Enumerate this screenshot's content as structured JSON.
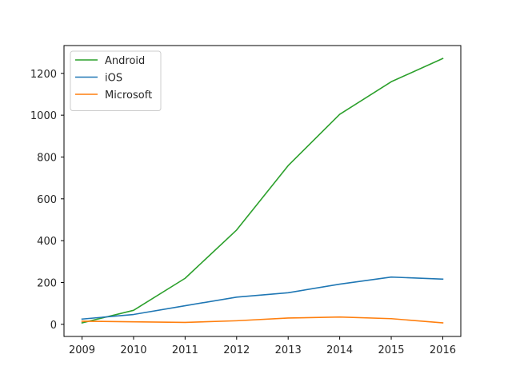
{
  "chart_data": {
    "type": "line",
    "title": "",
    "xlabel": "",
    "ylabel": "",
    "x": [
      2009,
      2010,
      2011,
      2012,
      2013,
      2014,
      2015,
      2016
    ],
    "xlim": [
      2008.65,
      2016.35
    ],
    "ylim": [
      -58,
      1333
    ],
    "yticks": [
      0,
      200,
      400,
      600,
      800,
      1000,
      1200
    ],
    "grid": false,
    "legend_position": "upper-left",
    "series": [
      {
        "name": "Android",
        "color": "#2ca02c",
        "values": [
          7,
          67,
          220,
          451,
          759,
          1004,
          1160,
          1271
        ]
      },
      {
        "name": "iOS",
        "color": "#1f77b4",
        "values": [
          25,
          47,
          89,
          130,
          151,
          192,
          226,
          216
        ]
      },
      {
        "name": "Microsoft",
        "color": "#ff7f0e",
        "values": [
          15,
          12,
          9,
          17,
          30,
          35,
          27,
          7
        ]
      }
    ]
  }
}
